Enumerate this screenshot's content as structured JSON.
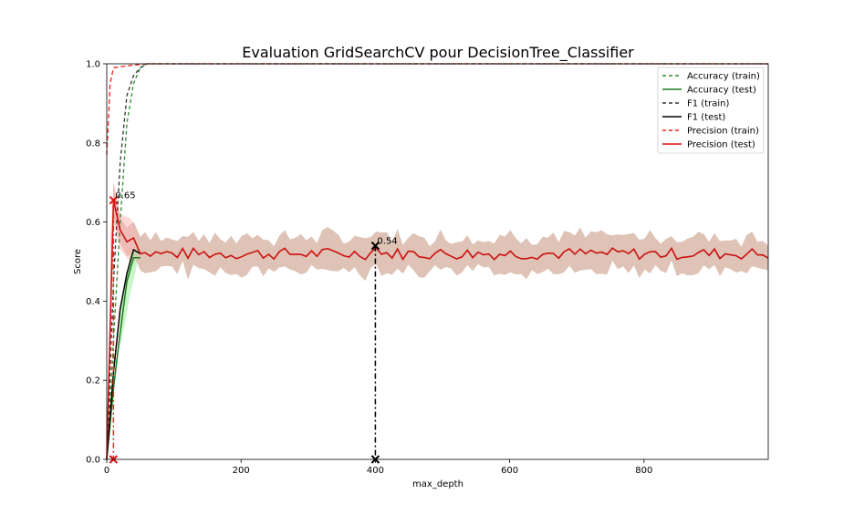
{
  "chart_data": {
    "type": "line",
    "title": "Evaluation GridSearchCV pour DecisionTree_Classifier",
    "xlabel": "max_depth",
    "ylabel": "Score",
    "xlim": [
      0,
      985
    ],
    "ylim": [
      0,
      1.0
    ],
    "x_ticks": [
      0,
      200,
      400,
      600,
      800
    ],
    "y_ticks": [
      0.0,
      0.2,
      0.4,
      0.6,
      0.8,
      1.0
    ],
    "legend_position": "top-right",
    "series": [
      {
        "name": "Accuracy (train)",
        "color": "#2e8b2e",
        "dash": true
      },
      {
        "name": "Accuracy (test)",
        "color": "#1a7a1a",
        "dash": false
      },
      {
        "name": "F1 (train)",
        "color": "#333333",
        "dash": true
      },
      {
        "name": "F1 (test)",
        "color": "#000000",
        "dash": false
      },
      {
        "name": "Precision (train)",
        "color": "#ee2222",
        "dash": true
      },
      {
        "name": "Precision (test)",
        "color": "#dd1111",
        "dash": false
      }
    ],
    "annotations": [
      {
        "text": "0.65",
        "x": 10,
        "y": 0.655
      },
      {
        "text": "0.54",
        "x": 400,
        "y": 0.54
      }
    ]
  }
}
